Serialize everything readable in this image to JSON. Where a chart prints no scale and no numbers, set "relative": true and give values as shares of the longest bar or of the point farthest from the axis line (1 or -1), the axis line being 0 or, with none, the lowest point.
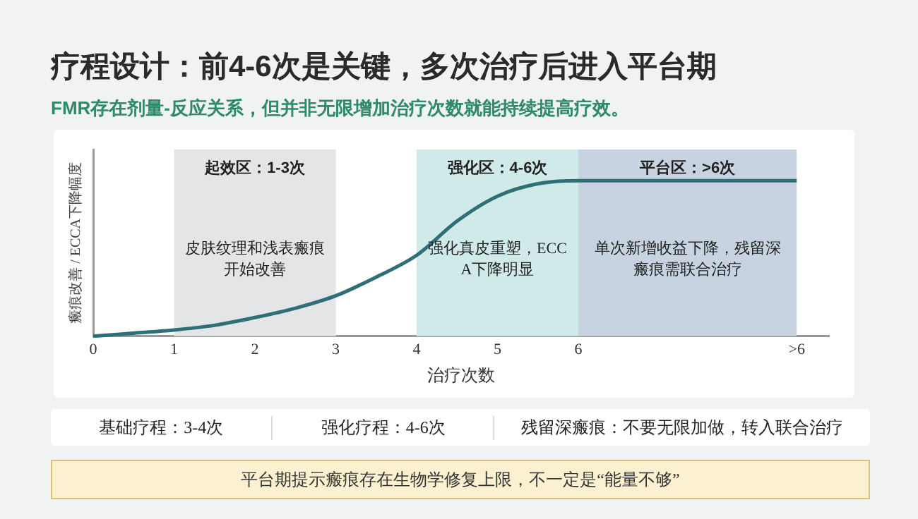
{
  "chart_data": {
    "type": "line",
    "title": "疗程设计：前4-6次是关键，多次治疗后进入平台期",
    "subtitle": "FMR存在剂量-反应关系，但并非无限增加治疗次数就能持续提高疗效。",
    "xlabel": "治疗次数",
    "ylabel": "瘢痕改善 / ECCA下降幅度",
    "relative": true,
    "x": [
      0,
      0.5,
      1,
      1.5,
      2,
      2.5,
      3,
      3.5,
      4,
      4.5,
      5,
      5.5,
      6,
      7,
      8.7
    ],
    "series": [
      {
        "color": "#2f6f78",
        "values": [
          0,
          0.02,
          0.04,
          0.07,
          0.12,
          0.18,
          0.26,
          0.38,
          0.52,
          0.74,
          0.9,
          0.98,
          1,
          1,
          1
        ]
      }
    ],
    "xlim": [
      0,
      9.1
    ],
    "xticks": [
      0,
      1,
      2,
      3,
      4,
      5,
      6,
      {
        "value": 8.7,
        "label": ">6"
      }
    ],
    "bands": [
      {
        "axis": "x",
        "from": 1,
        "to": 3,
        "label": "起效区：1-3次",
        "color": "#e4e5e7"
      },
      {
        "axis": "x",
        "from": 4,
        "to": 6,
        "label": "强化区：4-6次",
        "color": "#cfeae8"
      },
      {
        "axis": "x",
        "from": 6,
        "to": 8.7,
        "label": "平台区：>6次",
        "color": "#c8d3e2"
      }
    ],
    "annotations": [
      "皮肤纹理和浅表瘢痕开始改善",
      "强化真皮重塑，ECCA下降明显",
      "单次新增收益下降，残留深瘢痕需联合治疗",
      "基础疗程：3-4次",
      "强化疗程：4-6次",
      "残留深瘢痕：不要无限加做，转入联合治疗",
      "平台期提示瘢痕存在生物学修复上限，不一定是“能量不够”"
    ],
    "grid": false,
    "legend": false,
    "marker": "none",
    "line_style": "solid"
  }
}
